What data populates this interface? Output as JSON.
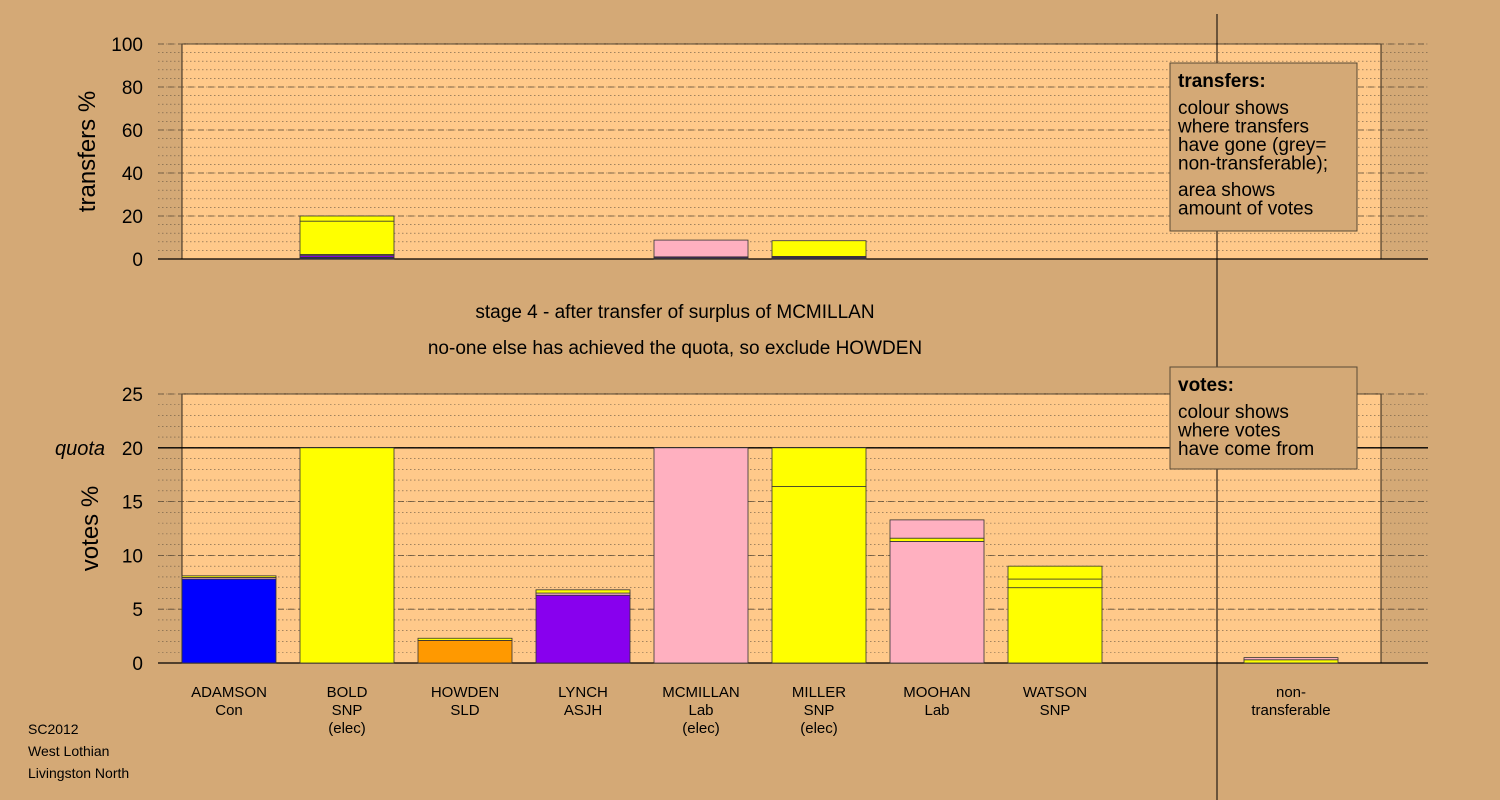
{
  "colors": {
    "background": "#d4a976",
    "plot_bg": "#ffc98a",
    "Con": "#0000ff",
    "SNP": "#ffff00",
    "SLD": "#ff9900",
    "ASJH": "#8800ee",
    "Lab": "#ffb0c0",
    "nontransferable": "#a0a0a0"
  },
  "chart_data": [
    {
      "type": "bar",
      "name": "transfers",
      "ylabel": "transfers %",
      "ylim": [
        0,
        100
      ],
      "yticks": [
        0,
        20,
        40,
        60,
        80,
        100
      ],
      "grid": true,
      "legend": {
        "title": "transfers:",
        "lines1": [
          "colour shows",
          "where transfers",
          "have gone (grey=",
          "non-transferable);"
        ],
        "lines2": [
          "area shows",
          "amount of votes"
        ]
      },
      "bars": [
        {
          "index": 1,
          "segments": [
            {
              "party": "Con",
              "value": 0.5
            },
            {
              "party": "SLD",
              "value": 0.3
            },
            {
              "party": "ASJH",
              "value": 0.8
            },
            {
              "party": "Lab",
              "value": 0.5
            },
            {
              "party": "SNP",
              "value": 15.5
            },
            {
              "party": "SNP",
              "value": 2.4
            }
          ]
        },
        {
          "index": 4,
          "segments": [
            {
              "party": "Con",
              "value": 0.2
            },
            {
              "party": "SLD",
              "value": 0.3
            },
            {
              "party": "ASJH",
              "value": 0.5
            },
            {
              "party": "Lab",
              "value": 7.8
            }
          ]
        },
        {
          "index": 5,
          "segments": [
            {
              "party": "Con",
              "value": 0.4
            },
            {
              "party": "SLD",
              "value": 0.3
            },
            {
              "party": "ASJH",
              "value": 0.5
            },
            {
              "party": "SNP",
              "value": 7.3
            }
          ]
        }
      ]
    },
    {
      "type": "bar",
      "name": "votes",
      "ylabel": "votes %",
      "ylim": [
        0,
        25
      ],
      "yticks": [
        0,
        5,
        10,
        15,
        20,
        25
      ],
      "quota": 20,
      "quota_label": "quota",
      "grid": true,
      "legend": {
        "title": "votes:",
        "lines1": [
          "colour shows",
          "where votes",
          "have come from"
        ]
      },
      "categories": [
        [
          "ADAMSON",
          "Con",
          ""
        ],
        [
          "BOLD",
          "SNP",
          "(elec)"
        ],
        [
          "HOWDEN",
          "SLD",
          ""
        ],
        [
          "LYNCH",
          "ASJH",
          ""
        ],
        [
          "MCMILLAN",
          "Lab",
          "(elec)"
        ],
        [
          "MILLER",
          "SNP",
          "(elec)"
        ],
        [
          "MOOHAN",
          "Lab",
          ""
        ],
        [
          "WATSON",
          "SNP",
          ""
        ],
        [
          "",
          "",
          ""
        ],
        [
          "non-",
          "transferable",
          ""
        ]
      ],
      "bars": [
        {
          "index": 0,
          "segments": [
            {
              "party": "Con",
              "value": 7.8
            },
            {
              "party": "Lab",
              "value": 0.15
            },
            {
              "party": "SNP",
              "value": 0.15
            }
          ]
        },
        {
          "index": 1,
          "segments": [
            {
              "party": "SNP",
              "value": 20
            }
          ]
        },
        {
          "index": 2,
          "segments": [
            {
              "party": "SLD",
              "value": 2.1
            },
            {
              "party": "SNP",
              "value": 0.2
            }
          ]
        },
        {
          "index": 3,
          "segments": [
            {
              "party": "ASJH",
              "value": 6.3
            },
            {
              "party": "Lab",
              "value": 0.2
            },
            {
              "party": "SNP",
              "value": 0.3
            }
          ]
        },
        {
          "index": 4,
          "segments": [
            {
              "party": "Lab",
              "value": 20
            }
          ]
        },
        {
          "index": 5,
          "segments": [
            {
              "party": "SNP",
              "value": 16.4
            },
            {
              "party": "SNP",
              "value": 3.6
            }
          ]
        },
        {
          "index": 6,
          "segments": [
            {
              "party": "Lab",
              "value": 11.3
            },
            {
              "party": "SNP",
              "value": 0.3
            },
            {
              "party": "Lab",
              "value": 1.7
            }
          ]
        },
        {
          "index": 7,
          "segments": [
            {
              "party": "SNP",
              "value": 7.0
            },
            {
              "party": "SNP",
              "value": 0.8
            },
            {
              "party": "SNP",
              "value": 1.2
            }
          ]
        },
        {
          "index": 9,
          "segments": [
            {
              "party": "SNP",
              "value": 0.3
            },
            {
              "party": "Lab",
              "value": 0.2
            }
          ]
        }
      ]
    }
  ],
  "stage_text": {
    "line1": "stage 4 - after transfer of surplus of MCMILLAN",
    "line2": "no-one else has achieved the quota, so exclude HOWDEN"
  },
  "footer": {
    "line1": "SC2012",
    "line2": "West Lothian",
    "line3": "Livingston North"
  }
}
